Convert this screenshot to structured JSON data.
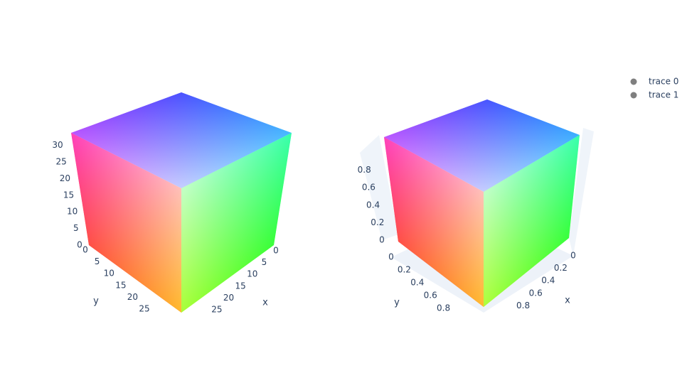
{
  "chart_data": [
    {
      "type": "scatter3d",
      "x_label": "x",
      "y_label": "y",
      "series": [
        {
          "name": "trace 0",
          "color": "#7f7f7f"
        }
      ],
      "xlim": [
        0,
        31
      ],
      "ylim": [
        0,
        31
      ],
      "zlim": [
        0,
        31
      ],
      "xticks": [
        0,
        5,
        10,
        15,
        20,
        25
      ],
      "yticks": [
        0,
        5,
        10,
        15,
        20,
        25
      ],
      "zticks": [
        0,
        5,
        10,
        15,
        20,
        25,
        30
      ]
    },
    {
      "type": "scatter3d",
      "x_label": "x",
      "y_label": "y",
      "series": [
        {
          "name": "trace 1",
          "color": "#7f7f7f"
        }
      ],
      "xlim": [
        0,
        1
      ],
      "ylim": [
        0,
        1
      ],
      "zlim": [
        0,
        1
      ],
      "xticks": [
        0,
        0.2,
        0.4,
        0.6,
        0.8
      ],
      "yticks": [
        0,
        0.2,
        0.4,
        0.6,
        0.8
      ],
      "zticks": [
        0,
        0.2,
        0.4,
        0.6,
        0.8
      ]
    }
  ]
}
